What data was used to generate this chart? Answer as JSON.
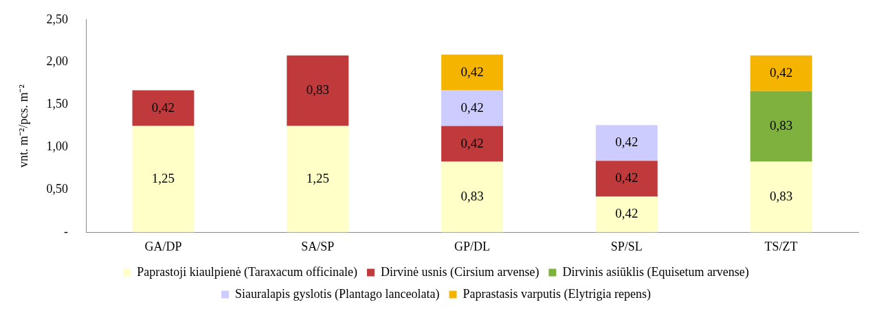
{
  "chart_data": {
    "type": "bar",
    "stacked": true,
    "categories": [
      "GA/DP",
      "SA/SP",
      "GP/DL",
      "SP/SL",
      "TS/ZT"
    ],
    "ylabel": "vnt. m⁻²/pcs. m⁻²",
    "ylim": [
      0,
      2.5
    ],
    "yticks": [
      {
        "value": 0,
        "label": "-"
      },
      {
        "value": 0.5,
        "label": "0,50"
      },
      {
        "value": 1,
        "label": "1,00"
      },
      {
        "value": 1.5,
        "label": "1,50"
      },
      {
        "value": 2,
        "label": "2,00"
      },
      {
        "value": 2.5,
        "label": "2,50"
      }
    ],
    "grid": false,
    "legend": "bottom",
    "series": [
      {
        "name": "Paprastoji kiaulpienė (Taraxacum officinale)",
        "color": "#ffffc8",
        "values": [
          1.25,
          1.25,
          0.83,
          0.42,
          0.83
        ],
        "value_labels": [
          "1,25",
          "1,25",
          "0,83",
          "0,42",
          "0,83"
        ]
      },
      {
        "name": "Dirvinė usnis (Cirsium arvense)",
        "color": "#c0393b",
        "values": [
          0.42,
          0.83,
          0.42,
          0.42,
          null
        ],
        "value_labels": [
          "0,42",
          "0,83",
          "0,42",
          "0,42",
          null
        ]
      },
      {
        "name": "Dirvinis asiūklis (Equisetum arvense)",
        "color": "#7fb13e",
        "values": [
          null,
          null,
          null,
          null,
          0.83
        ],
        "value_labels": [
          null,
          null,
          null,
          null,
          "0,83"
        ]
      },
      {
        "name": "Siauralapis gyslotis (Plantago lanceolata)",
        "color": "#ccccff",
        "values": [
          null,
          null,
          0.42,
          0.42,
          null
        ],
        "value_labels": [
          null,
          null,
          "0,42",
          "0,42",
          null
        ]
      },
      {
        "name": "Paprastasis varputis (Elytrigia repens)",
        "color": "#f5b400",
        "values": [
          null,
          null,
          0.42,
          null,
          0.42
        ],
        "value_labels": [
          null,
          null,
          "0,42",
          null,
          "0,42"
        ]
      }
    ]
  }
}
